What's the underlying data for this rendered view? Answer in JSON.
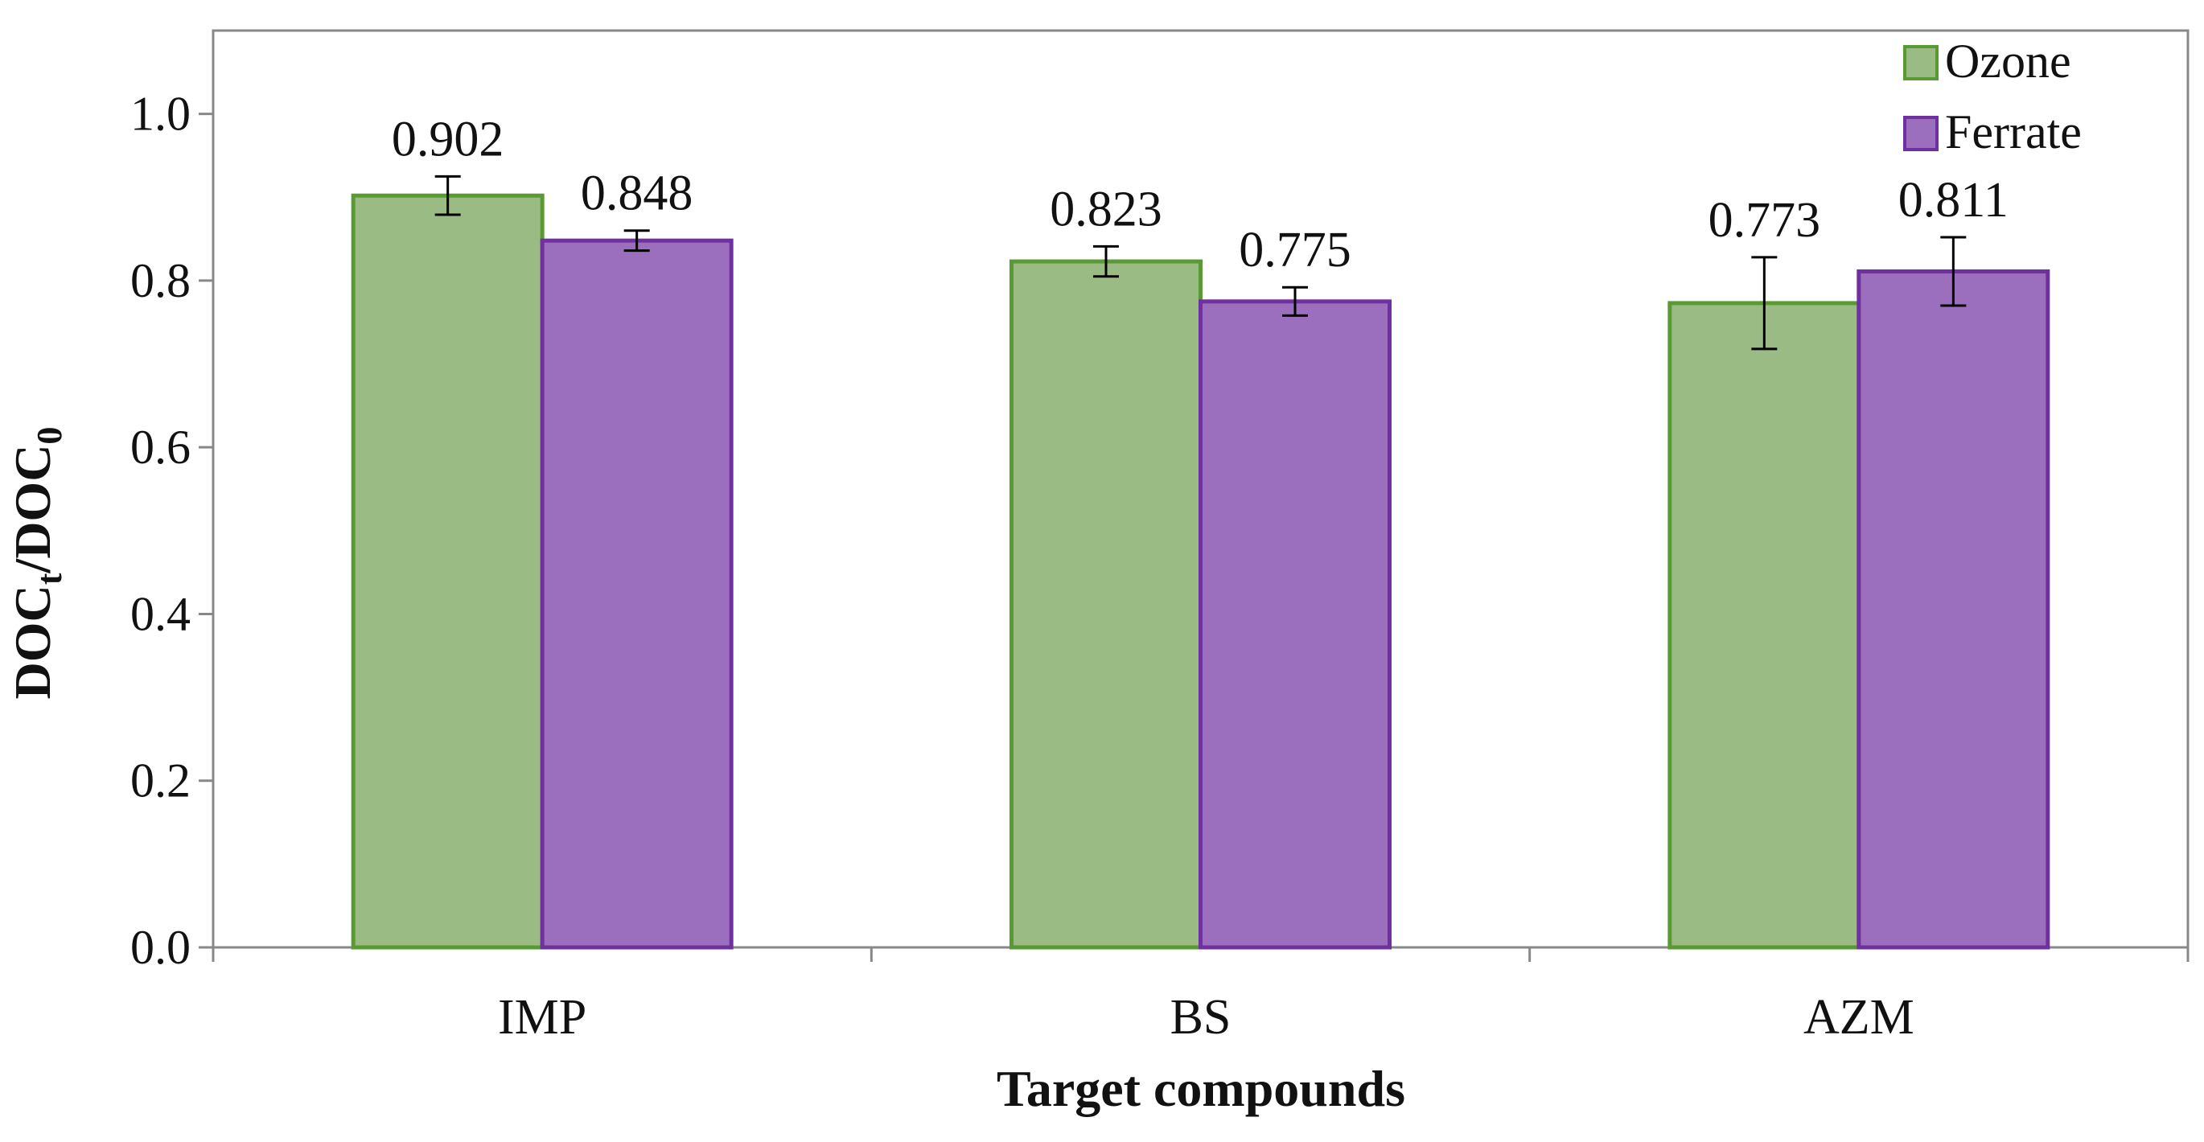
{
  "chart_data": {
    "type": "bar",
    "xlabel": "Target compounds",
    "ylabel": "DOCt/DOC0",
    "ylabel_parts": {
      "a": "DOC",
      "a_sub": "t",
      "b": "/DOC",
      "b_sub": "0"
    },
    "categories": [
      "IMP",
      "BS",
      "AZM"
    ],
    "ylim": [
      0.0,
      1.1
    ],
    "yticks": [
      0.0,
      0.2,
      0.4,
      0.6,
      0.8,
      1.0
    ],
    "ytick_labels": [
      "0.0",
      "0.2",
      "0.4",
      "0.6",
      "0.8",
      "1.0"
    ],
    "grid": false,
    "legend_position": "top-right",
    "series": [
      {
        "name": "Ozone",
        "fill": "#9BBB84",
        "stroke": "#5A9A33",
        "values": [
          0.902,
          0.823,
          0.773
        ],
        "labels": [
          "0.902",
          "0.823",
          "0.773"
        ],
        "errors": [
          0.023,
          0.018,
          0.055
        ]
      },
      {
        "name": "Ferrate",
        "fill": "#9B6FBD",
        "stroke": "#7030A0",
        "values": [
          0.848,
          0.775,
          0.811
        ],
        "labels": [
          "0.848",
          "0.775",
          "0.811"
        ],
        "errors": [
          0.012,
          0.017,
          0.041
        ]
      }
    ]
  }
}
